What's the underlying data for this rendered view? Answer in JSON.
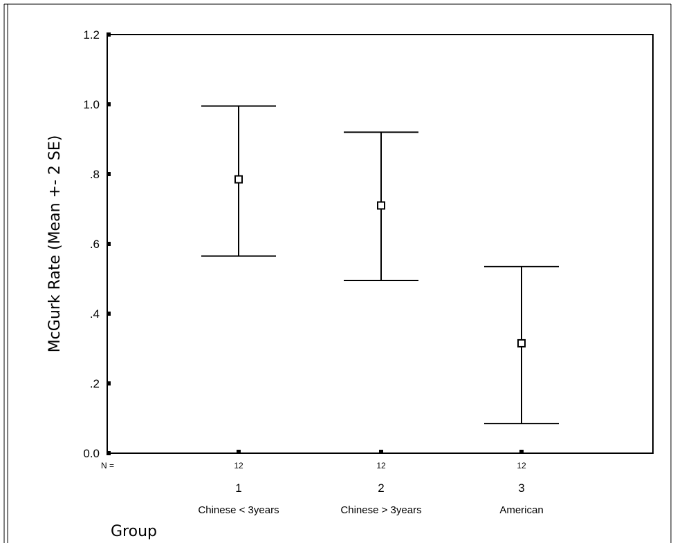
{
  "chart_data": {
    "type": "errorbar",
    "ylabel": "McGurk Rate (Mean +- 2 SE)",
    "xlabel": "Group",
    "ylim": [
      0.0,
      1.2
    ],
    "y_ticks": [
      {
        "value": 0.0,
        "label": "0.0"
      },
      {
        "value": 0.2,
        "label": ".2"
      },
      {
        "value": 0.4,
        "label": ".4"
      },
      {
        "value": 0.6,
        "label": ".6"
      },
      {
        "value": 0.8,
        "label": ".8"
      },
      {
        "value": 1.0,
        "label": "1.0"
      },
      {
        "value": 1.2,
        "label": "1.2"
      }
    ],
    "n_prefix": "N =",
    "categories": [
      {
        "code": "1",
        "name": "Chinese < 3years",
        "n": "12",
        "mean": 0.785,
        "lower": 0.565,
        "upper": 0.995
      },
      {
        "code": "2",
        "name": "Chinese > 3years",
        "n": "12",
        "mean": 0.71,
        "lower": 0.495,
        "upper": 0.92
      },
      {
        "code": "3",
        "name": "American",
        "n": "12",
        "mean": 0.315,
        "lower": 0.085,
        "upper": 0.535
      }
    ],
    "grid": false,
    "legend": "none"
  }
}
